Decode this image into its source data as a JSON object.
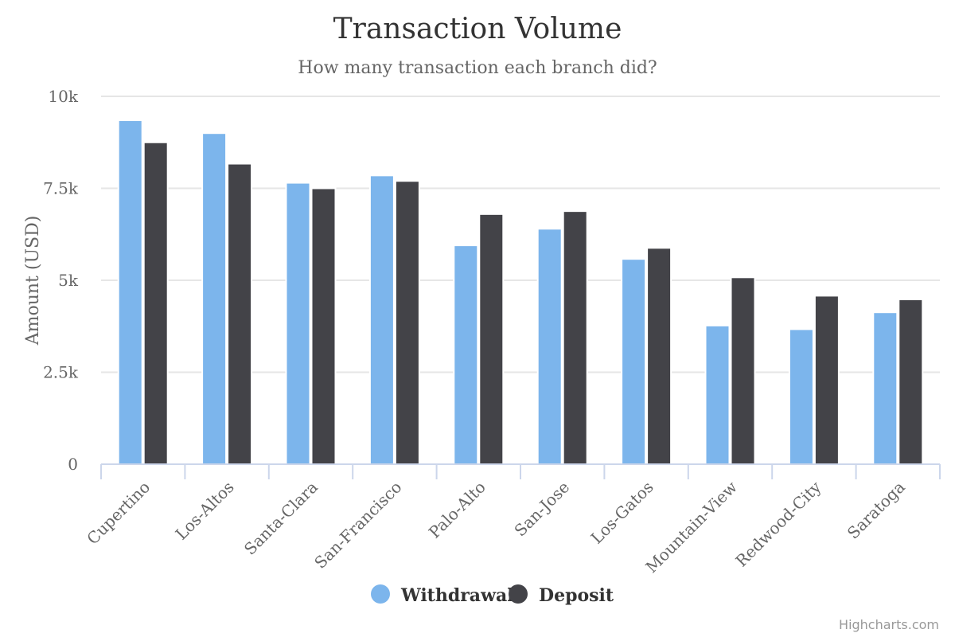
{
  "chart_data": {
    "type": "bar",
    "title": "Transaction Volume",
    "subtitle": "How many transaction each branch did?",
    "ylabel": "Amount (USD)",
    "xlabel": "",
    "ylim": [
      0,
      10000
    ],
    "y_ticks": [
      {
        "value": 0,
        "label": "0"
      },
      {
        "value": 2500,
        "label": "2.5k"
      },
      {
        "value": 5000,
        "label": "5k"
      },
      {
        "value": 7500,
        "label": "7.5k"
      },
      {
        "value": 10000,
        "label": "10k"
      }
    ],
    "categories": [
      "Cupertino",
      "Los-Altos",
      "Santa-Clara",
      "San-Francisco",
      "Palo-Alto",
      "San-Jose",
      "Los-Gatos",
      "Mountain-View",
      "Redwood-City",
      "Saratoga"
    ],
    "series": [
      {
        "name": "Withdrawal",
        "color": "#7cb5ec",
        "values": [
          9350,
          9000,
          7650,
          7850,
          5950,
          6400,
          5580,
          3770,
          3670,
          4130
        ]
      },
      {
        "name": "Deposit",
        "color": "#434348",
        "values": [
          8750,
          8170,
          7500,
          7700,
          6800,
          6880,
          5880,
          5080,
          4580,
          4480
        ]
      }
    ],
    "grid": true,
    "legend": "bottom-center"
  },
  "credits": "Highcharts.com"
}
